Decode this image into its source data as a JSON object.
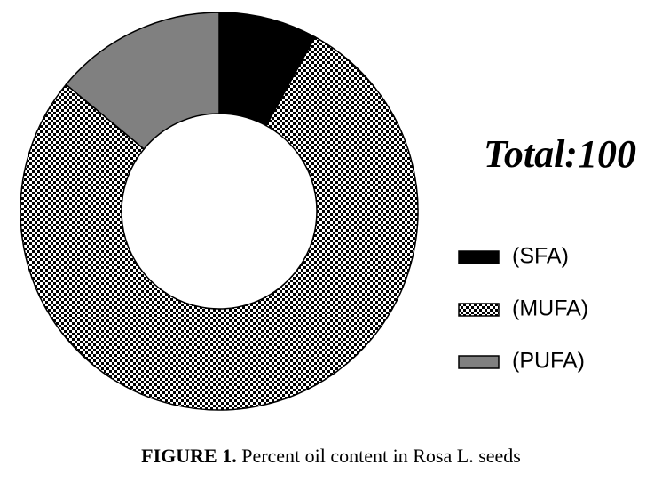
{
  "chart_data": {
    "type": "donut",
    "categories": [
      "(SFA)",
      "(MUFA)",
      "(PUFA)"
    ],
    "values": [
      8,
      78,
      14
    ],
    "colors": [
      "#000000",
      "#000000",
      "#808080"
    ],
    "patterns": [
      "solid",
      "checkerboard",
      "solid"
    ],
    "annotation": "Total:100",
    "caption_label": "FIGURE 1.",
    "caption": "Percent oil content in Rosa L. seeds"
  }
}
